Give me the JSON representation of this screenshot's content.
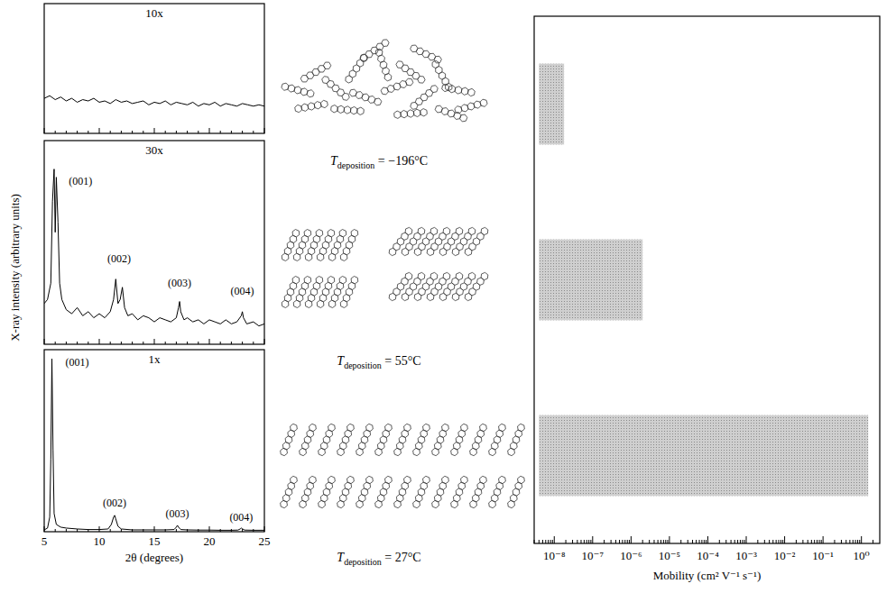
{
  "chart_data": [
    {
      "type": "line",
      "title": "10x",
      "x": [
        5,
        5.5,
        6,
        6.5,
        7,
        7.5,
        8,
        8.5,
        9,
        9.5,
        10,
        10.5,
        11,
        11.5,
        12,
        12.5,
        13,
        13.5,
        14,
        14.5,
        15,
        15.5,
        16,
        16.5,
        17,
        17.5,
        18,
        18.5,
        19,
        19.5,
        20,
        20.5,
        21,
        21.5,
        22,
        22.5,
        23,
        23.5,
        24,
        24.5,
        25
      ],
      "series": [
        {
          "color": "#000000",
          "values": [
            27,
            29,
            26,
            28,
            25,
            27,
            24,
            26,
            25,
            27,
            24,
            25,
            23,
            26,
            24,
            25,
            23,
            24,
            25,
            22,
            24,
            23,
            25,
            22,
            24,
            23,
            22,
            24,
            21,
            23,
            22,
            24,
            21,
            23,
            22,
            21,
            23,
            22,
            21,
            22,
            21
          ]
        }
      ],
      "xlim": [
        5,
        25
      ],
      "ylim": [
        0,
        100
      ],
      "xticks": [
        5,
        10,
        15,
        20,
        25
      ],
      "tick_labels": false
    },
    {
      "type": "line",
      "title": "30x",
      "ylabel": "X-ray intensity (arbitrary units)",
      "x": [
        5,
        5.3,
        5.6,
        5.75,
        5.9,
        6.0,
        6.1,
        6.25,
        6.4,
        6.6,
        7.0,
        7.5,
        8,
        8.5,
        9,
        9.5,
        10,
        10.5,
        11,
        11.3,
        11.5,
        11.7,
        11.9,
        12.1,
        12.3,
        12.6,
        13,
        13.5,
        14,
        14.5,
        15,
        15.5,
        16,
        16.5,
        17,
        17.2,
        17.3,
        17.4,
        17.7,
        18,
        18.5,
        19,
        19.5,
        20,
        20.5,
        21,
        21.5,
        22,
        22.5,
        22.9,
        23.0,
        23.1,
        23.4,
        24,
        24.5,
        25
      ],
      "series": [
        {
          "color": "#000000",
          "values": [
            20,
            22,
            30,
            70,
            86,
            55,
            82,
            60,
            30,
            22,
            17,
            15,
            18,
            14,
            16,
            13,
            15,
            13,
            16,
            22,
            32,
            20,
            22,
            28,
            18,
            14,
            15,
            12,
            14,
            13,
            11,
            13,
            12,
            11,
            13,
            18,
            21,
            16,
            12,
            13,
            11,
            12,
            10,
            12,
            11,
            10,
            12,
            10,
            11,
            14,
            16,
            13,
            10,
            11,
            9,
            10
          ]
        }
      ],
      "annotations": [
        {
          "text": "(001)",
          "x": 8.3,
          "y": 80
        },
        {
          "text": "(002)",
          "x": 11.8,
          "y": 42
        },
        {
          "text": "(003)",
          "x": 17.3,
          "y": 30
        },
        {
          "text": "(004)",
          "x": 23.0,
          "y": 26
        }
      ],
      "xlim": [
        5,
        25
      ],
      "ylim": [
        0,
        100
      ],
      "xticks": [
        5,
        10,
        15,
        20,
        25
      ],
      "tick_labels": false
    },
    {
      "type": "line",
      "title": "1x",
      "xlabel": "2θ (degrees)",
      "x": [
        5,
        5.3,
        5.5,
        5.6,
        5.7,
        5.8,
        5.9,
        6.1,
        6.5,
        7,
        8,
        9,
        10,
        10.8,
        11.1,
        11.3,
        11.4,
        11.5,
        11.7,
        12,
        13,
        14,
        15,
        16,
        16.8,
        17.0,
        17.1,
        17.2,
        17.4,
        18,
        19,
        20,
        21,
        22,
        22.6,
        22.8,
        22.9,
        23.0,
        23.2,
        24,
        25
      ],
      "series": [
        {
          "color": "#000000",
          "values": [
            1,
            2,
            8,
            40,
            95,
            45,
            10,
            4,
            2.5,
            2,
            1.5,
            1.2,
            1.2,
            1.5,
            4,
            8,
            9,
            7,
            3,
            1.5,
            1,
            1,
            1,
            1,
            1.2,
            2.5,
            3.5,
            2.5,
            1.2,
            1,
            0.9,
            0.9,
            0.8,
            0.8,
            0.9,
            1.5,
            2,
            1.6,
            0.9,
            0.8,
            0.8
          ]
        }
      ],
      "annotations": [
        {
          "text": "(001)",
          "x": 8.0,
          "y": 93
        },
        {
          "text": "(002)",
          "x": 11.4,
          "y": 16
        },
        {
          "text": "(003)",
          "x": 17.1,
          "y": 10
        },
        {
          "text": "(004)",
          "x": 22.9,
          "y": 8
        }
      ],
      "xlim": [
        5,
        25
      ],
      "ylim": [
        0,
        100
      ],
      "xticks": [
        5,
        10,
        15,
        20,
        25
      ],
      "tick_labels": "x"
    },
    {
      "type": "bar",
      "orientation": "horizontal",
      "log": "x",
      "xlabel": "Mobility (cm² V⁻¹ s⁻¹)",
      "categories": [
        "Tdeposition = −196°C",
        "Tdeposition = 55°C",
        "Tdeposition = 27°C"
      ],
      "values": [
        [
          4e-09,
          1.8e-08
        ],
        [
          4e-09,
          2e-06
        ],
        [
          4e-09,
          1.5
        ]
      ],
      "color": "#cfcfcf",
      "xlim": [
        3e-09,
        3
      ],
      "xticks": [
        {
          "value": 1e-08,
          "label": "10⁻⁸"
        },
        {
          "value": 1e-07,
          "label": "10⁻⁷"
        },
        {
          "value": 1e-06,
          "label": "10⁻⁶"
        },
        {
          "value": 1e-05,
          "label": "10⁻⁵"
        },
        {
          "value": 0.0001,
          "label": "10⁻⁴"
        },
        {
          "value": 0.001,
          "label": "10⁻³"
        },
        {
          "value": 0.01,
          "label": "10⁻²"
        },
        {
          "value": 0.1,
          "label": "10⁻¹"
        },
        {
          "value": 1,
          "label": "10⁰"
        }
      ],
      "tick_labels": "x"
    }
  ]
}
